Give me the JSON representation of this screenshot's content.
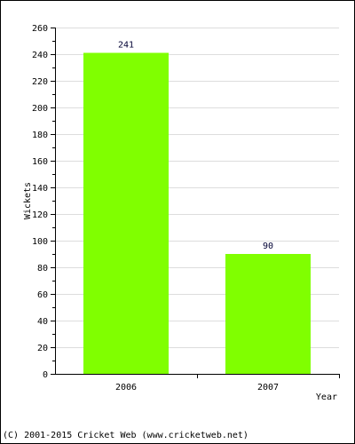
{
  "chart_data": {
    "type": "bar",
    "categories": [
      "2006",
      "2007"
    ],
    "values": [
      241,
      90
    ],
    "value_labels": [
      "241",
      "90"
    ],
    "xlabel": "Year",
    "ylabel": "Wickets",
    "ylim": [
      0,
      260
    ],
    "yticks": [
      0,
      20,
      40,
      60,
      80,
      100,
      120,
      140,
      160,
      180,
      200,
      220,
      240,
      260
    ],
    "grid": true,
    "bar_color": "#80FF00",
    "grid_color": "#dddddd"
  },
  "footer": {
    "copyright": "(C) 2001-2015 Cricket Web (www.cricketweb.net)"
  }
}
